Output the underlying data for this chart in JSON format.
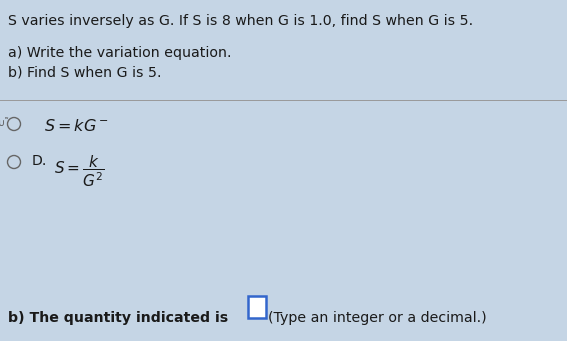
{
  "bg_color": "#c5d5e5",
  "title_text": "S varies inversely as G. If S is 8 when G is 1.0, find S when G is 5.",
  "part_a_label": "a) Write the variation equation.",
  "part_b_label": "b) Find S when G is 5.",
  "part_b_answer_label": "b) The quantity indicated is",
  "part_b_answer_suffix": "(Type an integer or a decimal.)",
  "radio_d_label": "D.",
  "font_color": "#1a1a1a",
  "divider_color": "#999999",
  "box_edge_color": "#3366cc",
  "title_fontsize": 10.2,
  "body_fontsize": 10.2,
  "answer_fontsize": 10.2
}
